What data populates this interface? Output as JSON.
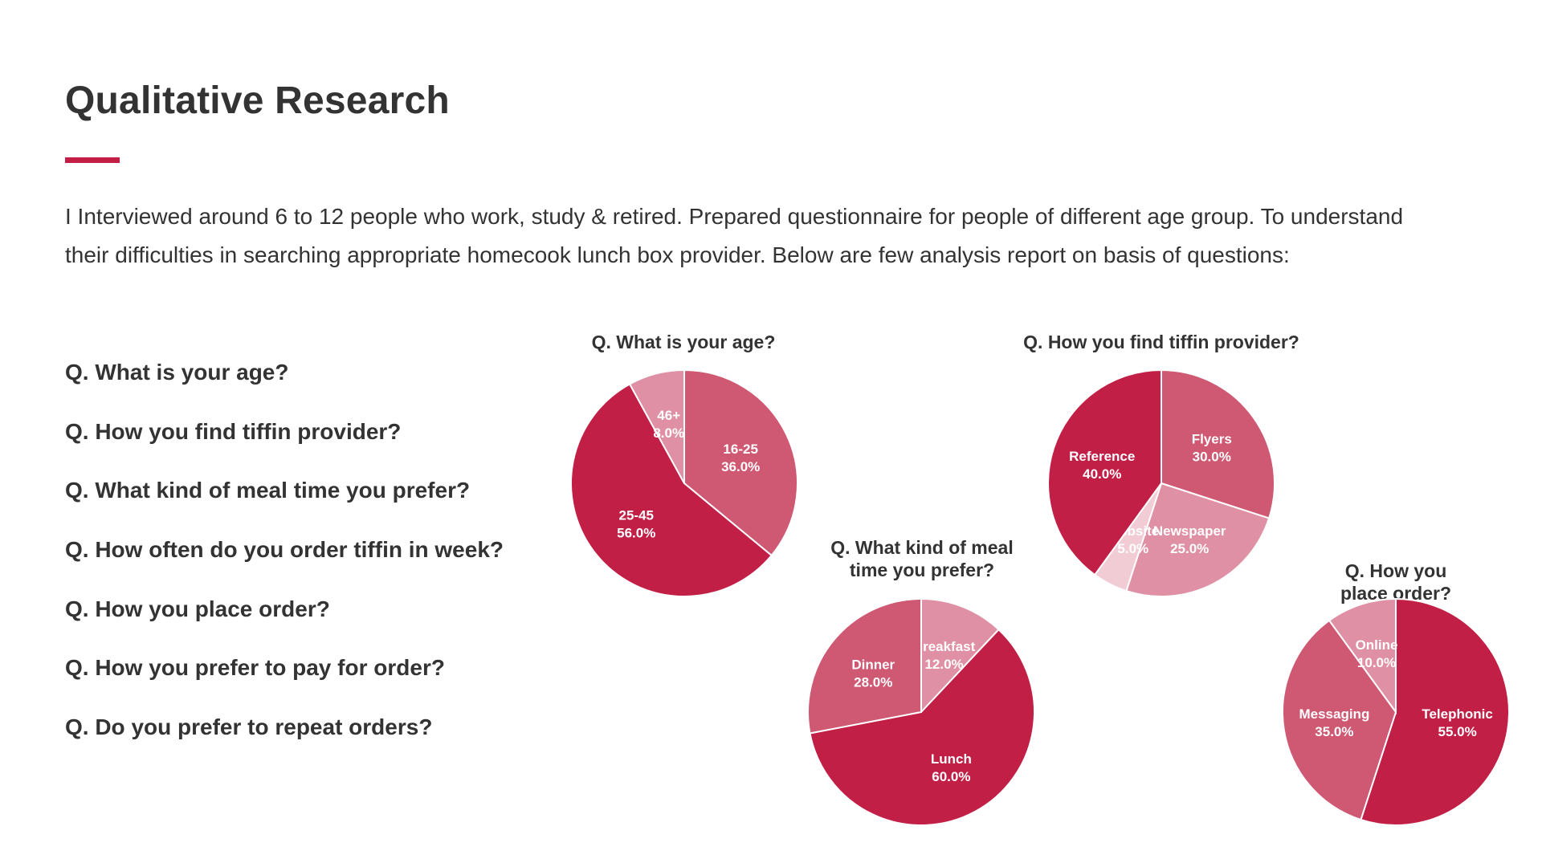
{
  "page": {
    "title": "Qualitative Research",
    "intro": "I Interviewed around 6 to 12 people who work, study & retired. Prepared questionnaire for people of different age group. To understand their difficulties in searching appropriate homecook lunch box provider. Below are few analysis report on basis of questions:",
    "accent_color": "#c41e47"
  },
  "questions": [
    "Q. What is your age?",
    "Q. How you find tiffin provider?",
    "Q. What kind of meal time you prefer?",
    "Q. How often do you order tiffin in week?",
    "Q. How you place order?",
    "Q. How you prefer to pay for order?",
    "Q. Do you prefer to repeat orders?"
  ],
  "chart_data": [
    {
      "type": "pie",
      "title": "Q. What is your age?",
      "slices": [
        {
          "label": "16-25",
          "value": 36.0,
          "display": "36.0%",
          "color": "#cf5873"
        },
        {
          "label": "25-45",
          "value": 56.0,
          "display": "56.0%",
          "color": "#c11f46"
        },
        {
          "label": "46+",
          "value": 8.0,
          "display": "8.0%",
          "color": "#e090a4"
        }
      ],
      "start_angle": 0,
      "direction": "clockwise"
    },
    {
      "type": "pie",
      "title": "Q. How you find tiffin provider?",
      "slices": [
        {
          "label": "Flyers",
          "value": 30.0,
          "display": "30.0%",
          "color": "#cf5873"
        },
        {
          "label": "Newspaper",
          "value": 25.0,
          "display": "25.0%",
          "color": "#e090a4"
        },
        {
          "label": "Website",
          "value": 5.0,
          "display": "5.0%",
          "color": "#f1ccd5"
        },
        {
          "label": "Reference",
          "value": 40.0,
          "display": "40.0%",
          "color": "#c11f46"
        }
      ],
      "start_angle": 0,
      "direction": "clockwise"
    },
    {
      "type": "pie",
      "title": "Q. What kind of meal\ntime you prefer?",
      "slices": [
        {
          "label": "Breakfast",
          "value": 12.0,
          "display": "12.0%",
          "color": "#e090a4"
        },
        {
          "label": "Lunch",
          "value": 60.0,
          "display": "60.0%",
          "color": "#c11f46"
        },
        {
          "label": "Dinner",
          "value": 28.0,
          "display": "28.0%",
          "color": "#cf5873"
        }
      ],
      "start_angle": 0,
      "direction": "clockwise"
    },
    {
      "type": "pie",
      "title": "Q. How you place order?",
      "slices": [
        {
          "label": "Telephonic",
          "value": 55.0,
          "display": "55.0%",
          "color": "#c11f46"
        },
        {
          "label": "Messaging",
          "value": 35.0,
          "display": "35.0%",
          "color": "#cf5873"
        },
        {
          "label": "Online",
          "value": 10.0,
          "display": "10.0%",
          "color": "#e090a4"
        }
      ],
      "start_angle": 0,
      "direction": "clockwise"
    }
  ]
}
